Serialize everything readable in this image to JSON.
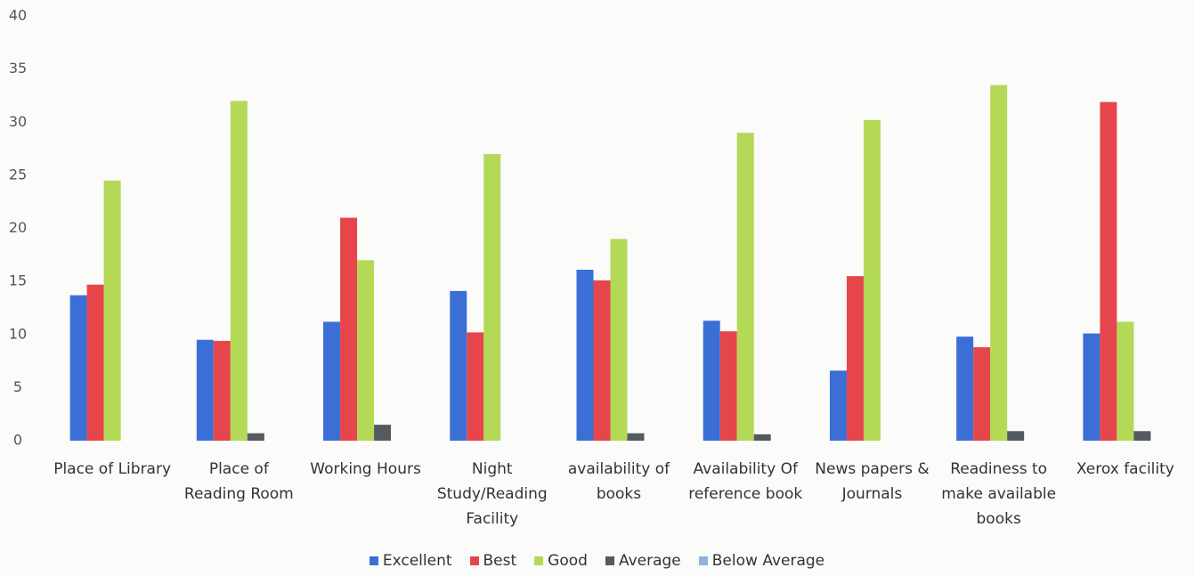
{
  "chart_data": {
    "type": "bar",
    "categories": [
      "Place of Library",
      "Place of Reading Room",
      "Working Hours",
      "Night Study/Reading Facility",
      "availability of books",
      "Availability Of reference book",
      "News papers & Journals",
      "Readiness to make available books",
      "Xerox facility"
    ],
    "series": [
      {
        "name": "Excellent",
        "color": "#3b6fd6",
        "values": [
          13.7,
          9.5,
          11.2,
          14.1,
          16.1,
          11.3,
          6.6,
          9.8,
          10.1
        ]
      },
      {
        "name": "Best",
        "color": "#e6464b",
        "values": [
          14.7,
          9.4,
          21.0,
          10.2,
          15.1,
          10.3,
          15.5,
          8.8,
          31.9
        ]
      },
      {
        "name": "Good",
        "color": "#b3d957",
        "values": [
          24.5,
          32.0,
          17.0,
          27.0,
          19.0,
          29.0,
          30.2,
          33.5,
          11.2
        ]
      },
      {
        "name": "Average",
        "color": "#555a60",
        "values": [
          0,
          0.7,
          1.5,
          0,
          0.7,
          0.6,
          0,
          0.9,
          0.9
        ]
      },
      {
        "name": "Below Average",
        "color": "#8fb3dc",
        "values": [
          0,
          0,
          0,
          0,
          0,
          0,
          0,
          0,
          0
        ]
      }
    ],
    "ylim": [
      0,
      40
    ],
    "yticks": [
      0,
      5,
      10,
      15,
      20,
      25,
      30,
      35,
      40
    ],
    "grid": false,
    "legend": "bottom"
  }
}
